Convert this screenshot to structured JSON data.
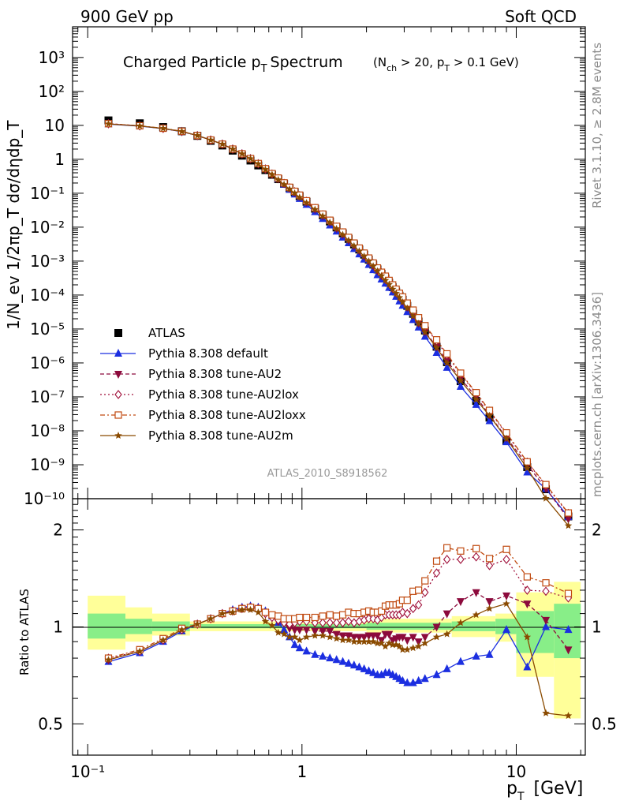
{
  "header": {
    "left": "900 GeV pp",
    "right": "Soft QCD"
  },
  "main_panel": {
    "title": "Charged Particle p",
    "title_sub": "T",
    "title_word": "Spectrum",
    "selection": {
      "open": "(N",
      "nch_sub": "ch",
      "mid": " > 20, p",
      "pt_sub": "T",
      "close": " > 0.1 GeV)"
    },
    "ylabel": "1/N_ev 1/2πp_T dσ/dηdp_T",
    "ytick_labels": [
      "10⁻¹⁰",
      "10⁻⁹",
      "10⁻⁸",
      "10⁻⁷",
      "10⁻⁶",
      "10⁻⁵",
      "10⁻⁴",
      "10⁻³",
      "10⁻²",
      "10⁻¹",
      "1",
      "10",
      "10²",
      "10³"
    ],
    "analysis_id": "ATLAS_2010_S8918562"
  },
  "ratio_panel": {
    "ylabel": "Ratio to ATLAS",
    "ytick_labels": [
      "0.5",
      "1",
      "2"
    ]
  },
  "xaxis": {
    "label": "p",
    "label_sub": "T",
    "label_unit": "[GeV]",
    "tick_labels": [
      "10⁻¹",
      "1",
      "10"
    ]
  },
  "side_text": {
    "rivet": "Rivet 3.1.10, ≥ 2.8M events",
    "mcplots": "mcplots.cern.ch [arXiv:1306.3436]"
  },
  "legend": [
    {
      "label": "ATLAS",
      "marker": "square",
      "color": "#000000"
    },
    {
      "label": "Pythia 8.308 default",
      "marker": "triangle-up",
      "color": "#1b2ee0"
    },
    {
      "label": "Pythia 8.308 tune-AU2",
      "marker": "triangle-down",
      "color": "#8c0a3c"
    },
    {
      "label": "Pythia 8.308 tune-AU2lox",
      "marker": "diamond-open",
      "color": "#a0103a"
    },
    {
      "label": "Pythia 8.308 tune-AU2loxx",
      "marker": "square-open",
      "color": "#c04a10"
    },
    {
      "label": "Pythia 8.308 tune-AU2m",
      "marker": "star",
      "color": "#8a4a00"
    }
  ],
  "chart_data": [
    {
      "type": "line",
      "title": "Charged Particle pT Spectrum (Nch > 20, pT > 0.1 GeV)",
      "xlabel": "pT [GeV]",
      "ylabel": "1/Nev 1/2πpT dσ/dηdpT",
      "xscale": "log",
      "yscale": "log",
      "xlim": [
        0.085,
        21
      ],
      "ylim": [
        1e-10,
        8000
      ],
      "x": [
        0.125,
        0.175,
        0.225,
        0.275,
        0.325,
        0.375,
        0.425,
        0.475,
        0.525,
        0.575,
        0.625,
        0.675,
        0.725,
        0.775,
        0.825,
        0.875,
        0.925,
        0.975,
        1.05,
        1.15,
        1.25,
        1.35,
        1.45,
        1.55,
        1.65,
        1.75,
        1.85,
        1.95,
        2.05,
        2.15,
        2.25,
        2.35,
        2.45,
        2.55,
        2.65,
        2.75,
        2.85,
        2.95,
        3.1,
        3.3,
        3.5,
        3.75,
        4.25,
        4.75,
        5.5,
        6.5,
        7.5,
        9.0,
        11.25,
        13.75,
        17.5
      ],
      "series": [
        {
          "name": "ATLAS",
          "values": [
            14.0,
            11.5,
            8.9,
            6.7,
            4.9,
            3.5,
            2.55,
            1.8,
            1.28,
            0.92,
            0.66,
            0.48,
            0.35,
            0.26,
            0.19,
            0.142,
            0.108,
            0.082,
            0.056,
            0.035,
            0.0225,
            0.0147,
            0.0098,
            0.0066,
            0.0045,
            0.0031,
            0.0022,
            0.00155,
            0.0011,
            0.00079,
            0.00057,
            0.00042,
            0.00031,
            0.00023,
            0.00017,
            0.000127,
            9.6e-05,
            7.3e-05,
            4.8e-05,
            2.8e-05,
            1.66e-05,
            9e-06,
            3e-06,
            1.05e-06,
            2.9e-07,
            7.6e-08,
            2.45e-08,
            5e-09,
            8.5e-10,
            1.9e-10,
            3e-11
          ]
        },
        {
          "name": "Pythia 8.308 default",
          "values": [
            10.9,
            9.5,
            8.0,
            6.5,
            5.0,
            3.7,
            2.8,
            2.0,
            1.45,
            1.05,
            0.74,
            0.52,
            0.37,
            0.26,
            0.18,
            0.127,
            0.093,
            0.069,
            0.046,
            0.028,
            0.0177,
            0.0114,
            0.0075,
            0.005,
            0.0034,
            0.0023,
            0.0016,
            0.00112,
            0.00078,
            0.00055,
            0.00039,
            0.00029,
            0.00022,
            0.000165,
            0.000121,
            9e-05,
            6.6e-05,
            4.9e-05,
            3.2e-05,
            1.86e-05,
            1.12e-05,
            6e-06,
            2e-06,
            7.3e-07,
            2e-07,
            5.9e-08,
            1.95e-08,
            4.7e-09,
            6e-10,
            1.95e-10,
            2.9e-11
          ]
        },
        {
          "name": "Pythia 8.308 tune-AU2",
          "values": [
            11.1,
            9.6,
            8.1,
            6.6,
            5.0,
            3.7,
            2.8,
            2.0,
            1.45,
            1.05,
            0.74,
            0.52,
            0.37,
            0.27,
            0.195,
            0.141,
            0.107,
            0.081,
            0.055,
            0.034,
            0.0218,
            0.0142,
            0.0093,
            0.0062,
            0.0042,
            0.0029,
            0.00205,
            0.00144,
            0.00103,
            0.00074,
            0.00053,
            0.00038,
            0.00029,
            0.000213,
            0.000154,
            0.000117,
            8.9e-05,
            6.8e-05,
            4.4e-05,
            2.6e-05,
            1.5e-05,
            8.4e-06,
            3e-06,
            1.15e-06,
            3.5e-07,
            1e-07,
            2.95e-08,
            6.3e-09,
            1e-09,
            2e-10,
            2.55e-11
          ]
        },
        {
          "name": "Pythia 8.308 tune-AU2lox",
          "values": [
            11.2,
            9.7,
            8.1,
            6.6,
            5.0,
            3.7,
            2.8,
            2.0,
            1.45,
            1.05,
            0.74,
            0.52,
            0.37,
            0.27,
            0.196,
            0.145,
            0.111,
            0.085,
            0.058,
            0.036,
            0.0232,
            0.0152,
            0.0101,
            0.0068,
            0.0047,
            0.0032,
            0.00228,
            0.00163,
            0.00117,
            0.00084,
            0.0006,
            0.00045,
            0.00034,
            0.00025,
            0.000186,
            0.000139,
            0.000105,
            8.1e-05,
            5.3e-05,
            3.2e-05,
            1.95e-05,
            1.15e-05,
            4.4e-06,
            1.7e-06,
            4.7e-07,
            1.25e-07,
            3.8e-08,
            8.1e-09,
            1.2e-09,
            2.45e-10,
            3.7e-11
          ]
        },
        {
          "name": "Pythia 8.308 tune-AU2loxx",
          "values": [
            11.2,
            9.7,
            8.2,
            6.7,
            5.0,
            3.7,
            2.8,
            2.0,
            1.45,
            1.05,
            0.75,
            0.53,
            0.38,
            0.28,
            0.202,
            0.15,
            0.114,
            0.088,
            0.06,
            0.0375,
            0.0243,
            0.016,
            0.0106,
            0.0072,
            0.005,
            0.0034,
            0.00242,
            0.00172,
            0.00123,
            0.00088,
            0.00063,
            0.00047,
            0.00036,
            0.00027,
            0.000199,
            0.000149,
            0.000113,
            8.8e-05,
            5.8e-05,
            3.6e-05,
            2.15e-05,
            1.25e-05,
            4.8e-06,
            1.85e-06,
            5e-07,
            1.33e-07,
            4e-08,
            8.7e-09,
            1.22e-09,
            2.6e-10,
            3.8e-11
          ]
        },
        {
          "name": "Pythia 8.308 tune-AU2m",
          "values": [
            11.0,
            9.6,
            8.1,
            6.6,
            5.0,
            3.7,
            2.8,
            2.0,
            1.45,
            1.04,
            0.73,
            0.5,
            0.355,
            0.25,
            0.18,
            0.132,
            0.1,
            0.075,
            0.052,
            0.033,
            0.0212,
            0.0137,
            0.009,
            0.006,
            0.0041,
            0.0028,
            0.00197,
            0.00139,
            0.00099,
            0.00071,
            0.00051,
            0.00037,
            0.00027,
            0.000205,
            0.000149,
            0.000112,
            8.4e-05,
            6.2e-05,
            4.1e-05,
            2.42e-05,
            1.44e-05,
            8e-06,
            2.8e-06,
            1e-06,
            3e-07,
            8.3e-08,
            2.8e-08,
            5.9e-09,
            7.9e-10,
            1.02e-10,
            1.6e-11
          ]
        }
      ]
    },
    {
      "type": "line",
      "title": "",
      "xlabel": "pT [GeV]",
      "ylabel": "Ratio to ATLAS",
      "xscale": "log",
      "yscale": "log",
      "xlim": [
        0.085,
        21
      ],
      "ylim": [
        0.4,
        2.5
      ],
      "x": [
        0.125,
        0.175,
        0.225,
        0.275,
        0.325,
        0.375,
        0.425,
        0.475,
        0.525,
        0.575,
        0.625,
        0.675,
        0.725,
        0.775,
        0.825,
        0.875,
        0.925,
        0.975,
        1.05,
        1.15,
        1.25,
        1.35,
        1.45,
        1.55,
        1.65,
        1.75,
        1.85,
        1.95,
        2.05,
        2.15,
        2.25,
        2.35,
        2.45,
        2.55,
        2.65,
        2.75,
        2.85,
        2.95,
        3.1,
        3.3,
        3.5,
        3.75,
        4.25,
        4.75,
        5.5,
        6.5,
        7.5,
        9.0,
        11.25,
        13.75,
        17.5
      ],
      "series": [
        {
          "name": "Pythia 8.308 default",
          "values": [
            0.78,
            0.83,
            0.9,
            0.97,
            1.02,
            1.06,
            1.1,
            1.13,
            1.15,
            1.16,
            1.15,
            1.12,
            1.08,
            1.03,
            0.98,
            0.93,
            0.88,
            0.86,
            0.84,
            0.82,
            0.81,
            0.8,
            0.79,
            0.78,
            0.77,
            0.76,
            0.75,
            0.74,
            0.73,
            0.72,
            0.71,
            0.71,
            0.72,
            0.72,
            0.71,
            0.7,
            0.69,
            0.68,
            0.67,
            0.67,
            0.68,
            0.69,
            0.71,
            0.74,
            0.78,
            0.81,
            0.82,
            0.98,
            0.75,
            1.0,
            0.98
          ]
        },
        {
          "name": "Pythia 8.308 tune-AU2",
          "values": [
            0.79,
            0.84,
            0.91,
            0.98,
            1.02,
            1.06,
            1.1,
            1.12,
            1.14,
            1.15,
            1.14,
            1.11,
            1.07,
            1.04,
            1.03,
            0.99,
            0.98,
            0.98,
            0.98,
            0.97,
            0.97,
            0.97,
            0.95,
            0.94,
            0.94,
            0.93,
            0.93,
            0.93,
            0.94,
            0.94,
            0.94,
            0.91,
            0.95,
            0.95,
            0.91,
            0.92,
            0.93,
            0.93,
            0.91,
            0.93,
            0.9,
            0.93,
            1.0,
            1.1,
            1.2,
            1.28,
            1.2,
            1.25,
            1.18,
            1.05,
            0.85
          ]
        },
        {
          "name": "Pythia 8.308 tune-AU2lox",
          "values": [
            0.8,
            0.84,
            0.91,
            0.98,
            1.02,
            1.06,
            1.1,
            1.12,
            1.14,
            1.15,
            1.14,
            1.1,
            1.07,
            1.05,
            1.03,
            1.02,
            1.03,
            1.04,
            1.04,
            1.03,
            1.03,
            1.03,
            1.03,
            1.03,
            1.04,
            1.03,
            1.04,
            1.05,
            1.06,
            1.06,
            1.05,
            1.07,
            1.09,
            1.09,
            1.09,
            1.09,
            1.09,
            1.11,
            1.1,
            1.14,
            1.17,
            1.28,
            1.47,
            1.62,
            1.62,
            1.65,
            1.55,
            1.62,
            1.3,
            1.29,
            1.23
          ]
        },
        {
          "name": "Pythia 8.308 tune-AU2loxx",
          "values": [
            0.8,
            0.85,
            0.92,
            0.99,
            1.02,
            1.06,
            1.1,
            1.12,
            1.14,
            1.15,
            1.14,
            1.11,
            1.09,
            1.08,
            1.06,
            1.06,
            1.06,
            1.07,
            1.07,
            1.07,
            1.08,
            1.09,
            1.08,
            1.09,
            1.11,
            1.1,
            1.1,
            1.11,
            1.12,
            1.11,
            1.11,
            1.12,
            1.16,
            1.17,
            1.17,
            1.17,
            1.18,
            1.21,
            1.21,
            1.29,
            1.3,
            1.39,
            1.6,
            1.76,
            1.72,
            1.75,
            1.63,
            1.74,
            1.43,
            1.37,
            1.27
          ]
        },
        {
          "name": "Pythia 8.308 tune-AU2m",
          "values": [
            0.79,
            0.84,
            0.91,
            0.98,
            1.02,
            1.06,
            1.1,
            1.11,
            1.13,
            1.13,
            1.11,
            1.04,
            1.01,
            0.96,
            0.95,
            0.93,
            0.93,
            0.91,
            0.93,
            0.94,
            0.94,
            0.93,
            0.92,
            0.91,
            0.91,
            0.9,
            0.9,
            0.9,
            0.9,
            0.9,
            0.89,
            0.89,
            0.87,
            0.89,
            0.88,
            0.88,
            0.87,
            0.85,
            0.85,
            0.86,
            0.87,
            0.89,
            0.93,
            0.95,
            1.03,
            1.09,
            1.14,
            1.18,
            0.93,
            0.54,
            0.53
          ]
        }
      ]
    }
  ]
}
